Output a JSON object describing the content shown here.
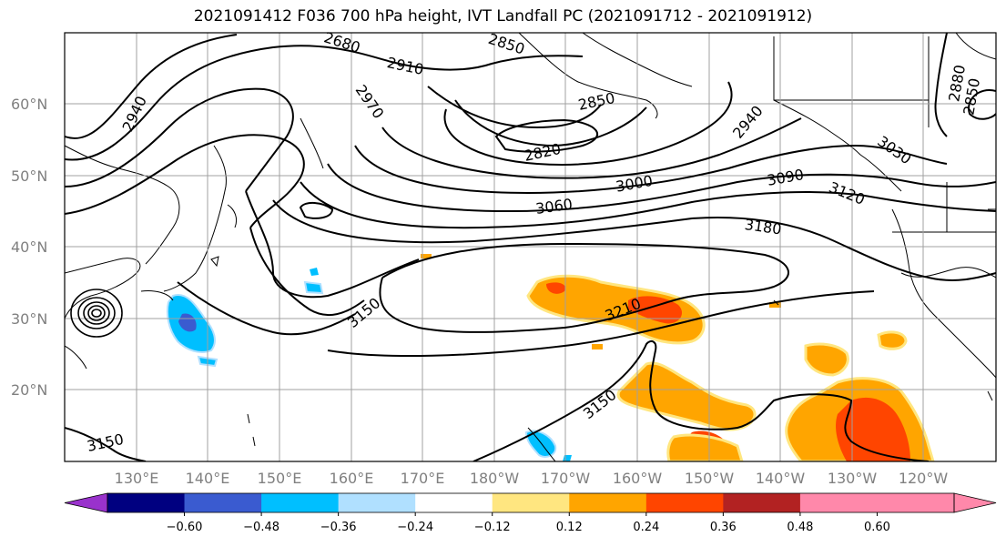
{
  "title": "2021091412 F036 700 hPa height, IVT Landfall PC (2021091712 - 2021091912)",
  "lat_labels": [
    "60°N",
    "50°N",
    "40°N",
    "30°N",
    "20°N"
  ],
  "lon_labels": [
    "130°E",
    "140°E",
    "150°E",
    "160°E",
    "170°E",
    "180°W",
    "170°W",
    "160°W",
    "150°W",
    "140°W",
    "130°W",
    "120°W"
  ],
  "contour_labels": [
    "2680",
    "2850",
    "2910",
    "2940",
    "2970",
    "2850",
    "2820",
    "2940",
    "3030",
    "3090",
    "3000",
    "3060",
    "3120",
    "3180",
    "3150",
    "3210",
    "3150",
    "3150",
    "2880",
    "2850",
    "3150"
  ],
  "colorbar": {
    "ticks": [
      "−0.60",
      "−0.48",
      "−0.36",
      "−0.24",
      "−0.12",
      "0.12",
      "0.24",
      "0.36",
      "0.48",
      "0.60"
    ],
    "colors": [
      "#9932cc",
      "#000080",
      "#3a5bd0",
      "#00bfff",
      "#b0e0ff",
      "#ffffff",
      "#ffe680",
      "#ffa500",
      "#ff4500",
      "#b22222",
      "#ff88aa",
      "#ff88aa"
    ]
  }
}
